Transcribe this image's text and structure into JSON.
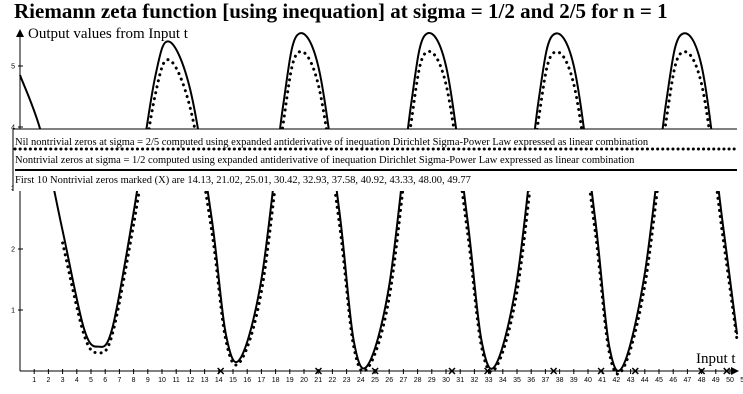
{
  "chart_data": {
    "type": "line",
    "title": "Riemann zeta function [using inequation] at sigma = 1/2 and 2/5 for n = 1",
    "ylabel": "Output values from Input t",
    "xlabel": "Input t",
    "xlim": [
      0,
      51
    ],
    "ylim": [
      0,
      5.5
    ],
    "x_ticks": [
      1,
      2,
      3,
      4,
      5,
      6,
      7,
      8,
      9,
      10,
      11,
      12,
      13,
      14,
      15,
      16,
      17,
      18,
      19,
      20,
      21,
      22,
      23,
      24,
      25,
      26,
      27,
      28,
      29,
      30,
      31,
      32,
      33,
      34,
      35,
      36,
      37,
      38,
      39,
      40,
      41,
      42,
      43,
      44,
      45,
      46,
      47,
      48,
      49,
      50,
      51
    ],
    "y_ticks": [
      1,
      2,
      3,
      4,
      5
    ],
    "grid": false,
    "legend": [
      "Nil nontrivial zeros at sigma = 2/5 computed using expanded antiderivative of inequation Dirichlet Sigma-Power Law expressed as linear combination",
      "Nontrivial zeros at sigma = 1/2 computed using expanded antiderivative of inequation Dirichlet Sigma-Power Law expressed as linear combination",
      "First 10 Nontrivial zeros marked (X) are 14.13, 21.02, 25.01, 30.42, 32.93, 37.58, 40.92, 43.33, 48.00, 49.77"
    ],
    "legend_placement": "top, overlapping plot",
    "series": [
      {
        "style": "solid",
        "x": [
          0,
          1.5,
          3,
          4.5,
          5.5,
          6.5,
          8,
          9.5,
          10.5,
          12,
          13.5,
          14.5,
          15.5,
          17,
          18.5,
          19.5,
          21,
          22.5,
          23.5,
          24.5,
          26,
          27.5,
          28.5,
          30,
          31.5,
          32.5,
          33.5,
          35,
          36.5,
          37.5,
          39,
          40.5,
          41.5,
          42.5,
          44,
          45.5,
          46.5,
          48,
          49.5,
          50.5
        ],
        "y": [
          4.85,
          3.9,
          2.3,
          0.7,
          0.4,
          0.7,
          2.6,
          4.8,
          5.4,
          4.6,
          2.5,
          0.6,
          0.2,
          1.5,
          4.3,
          5.5,
          5.0,
          2.6,
          0.5,
          0.1,
          1.4,
          4.3,
          5.5,
          5.0,
          2.5,
          0.5,
          0.1,
          1.5,
          4.4,
          5.5,
          5.0,
          2.5,
          0.4,
          0.1,
          1.6,
          4.4,
          5.5,
          5.0,
          2.4,
          0.6
        ]
      },
      {
        "style": "dotted",
        "x": [
          3,
          4.5,
          5.5,
          6.5,
          8,
          9.5,
          10.5,
          12,
          13.5,
          14.5,
          15.5,
          17,
          18.5,
          19.5,
          21,
          22.5,
          23.5,
          24.5,
          26,
          27.5,
          28.5,
          30,
          31.5,
          32.5,
          33.5,
          35,
          36.5,
          37.5,
          39,
          40.5,
          41.5,
          42.5,
          44,
          45.5,
          46.5,
          48,
          49.5,
          50.5
        ],
        "y": [
          2.1,
          0.6,
          0.3,
          0.6,
          2.4,
          4.5,
          5.1,
          4.3,
          2.3,
          0.5,
          0.15,
          1.3,
          4.0,
          5.2,
          4.7,
          2.4,
          0.4,
          0.05,
          1.2,
          4.0,
          5.2,
          4.7,
          2.3,
          0.4,
          0.05,
          1.3,
          4.1,
          5.2,
          4.7,
          2.3,
          0.3,
          0.05,
          1.4,
          4.1,
          5.2,
          4.7,
          2.2,
          0.5
        ]
      }
    ],
    "marked_zeros_x": [
      14.13,
      21.02,
      25.01,
      30.42,
      32.93,
      37.58,
      40.92,
      43.33,
      48.0,
      49.77
    ],
    "crosses_row_x": [
      1,
      3,
      5,
      7,
      9,
      11,
      13,
      15,
      17,
      19,
      21,
      23,
      25,
      27,
      29,
      31,
      33,
      35,
      37,
      39,
      41,
      43,
      45,
      47,
      49
    ]
  }
}
